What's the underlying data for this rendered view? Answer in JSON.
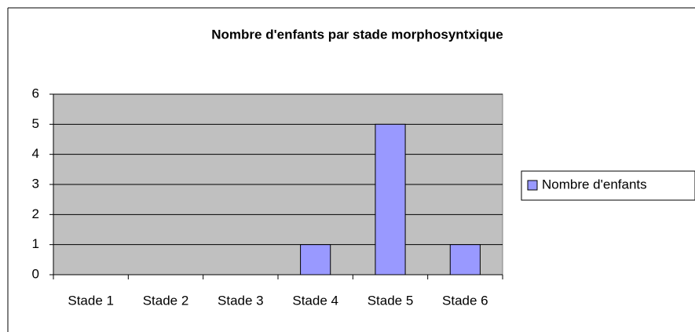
{
  "chart_data": {
    "type": "bar",
    "title": "Nombre d'enfants par stade morphosyntxique",
    "categories": [
      "Stade 1",
      "Stade 2",
      "Stade 3",
      "Stade 4",
      "Stade 5",
      "Stade 6"
    ],
    "series": [
      {
        "name": "Nombre d'enfants",
        "color": "#9999ff",
        "values": [
          0,
          0,
          0,
          1,
          5,
          1
        ]
      }
    ],
    "ylim": [
      0,
      6
    ],
    "yticks": [
      0,
      1,
      2,
      3,
      4,
      5,
      6
    ],
    "grid": true,
    "legend": "right",
    "plot_background": "#c0c0c0"
  }
}
